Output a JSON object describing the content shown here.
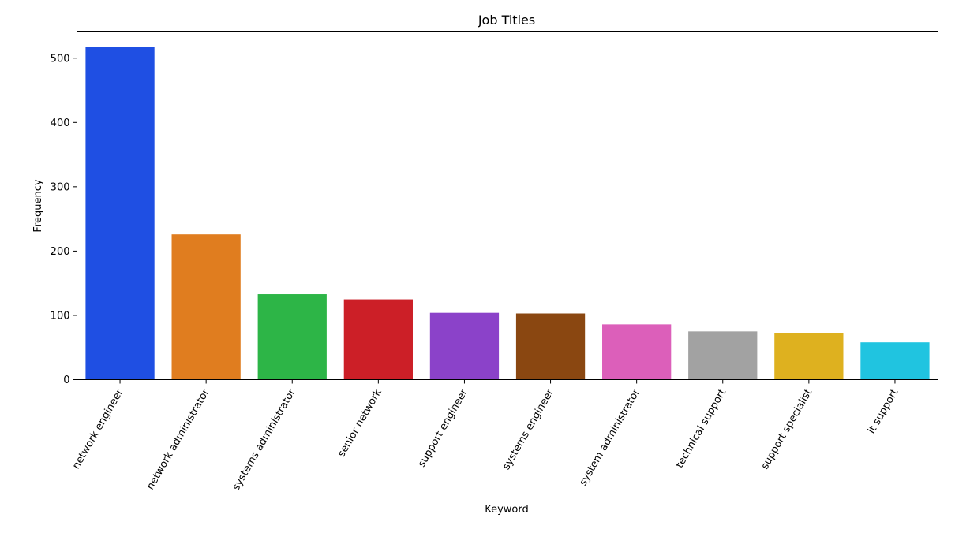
{
  "chart_data": {
    "type": "bar",
    "title": "Job Titles",
    "xlabel": "Keyword",
    "ylabel": "Frequency",
    "categories": [
      "network engineer",
      "network administrator",
      "systems administrator",
      "senior network",
      "support engineer",
      "systems engineer",
      "system administrator",
      "technical support",
      "support specialist",
      "it support"
    ],
    "values": [
      517,
      226,
      133,
      125,
      104,
      103,
      86,
      75,
      72,
      58
    ],
    "colors": [
      "#1f4fe3",
      "#e07d1f",
      "#2db547",
      "#cc1f27",
      "#8b42c9",
      "#8a4711",
      "#dc5fba",
      "#a2a2a2",
      "#deb11f",
      "#20c4e0"
    ],
    "ylim": [
      0,
      542
    ],
    "yticks": [
      0,
      100,
      200,
      300,
      400,
      500
    ],
    "grid": false,
    "legend": "none"
  }
}
